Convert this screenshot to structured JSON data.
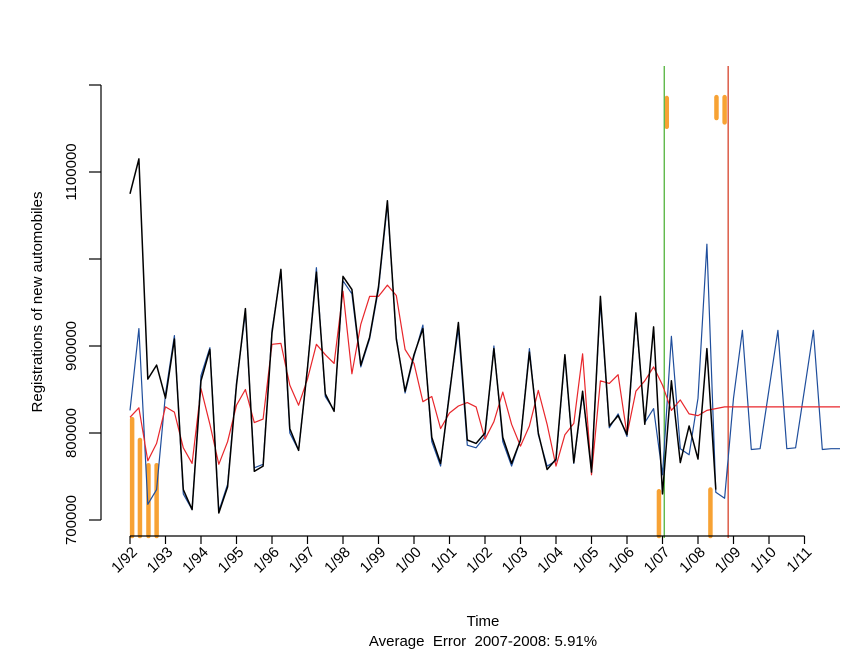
{
  "chart_data": {
    "type": "line",
    "xlabel": "Time",
    "ylabel": "Registrations of new automobiles",
    "footnote": "Average  Error  2007-2008: 5.91%",
    "xlim": [
      1992.0,
      2012.0
    ],
    "ylim": [
      700000,
      1200000
    ],
    "x_tick_labels": [
      "1/92",
      "1/93",
      "1/94",
      "1/95",
      "1/96",
      "1/97",
      "1/98",
      "1/99",
      "1/00",
      "1/01",
      "1/02",
      "1/03",
      "1/04",
      "1/05",
      "1/06",
      "1/07",
      "1/08",
      "1/09",
      "1/10",
      "1/11"
    ],
    "x_tick_values": [
      1992,
      1993,
      1994,
      1995,
      1996,
      1997,
      1998,
      1999,
      2000,
      2001,
      2002,
      2003,
      2004,
      2005,
      2006,
      2007,
      2008,
      2009,
      2010,
      2011
    ],
    "y_tick_labels": [
      "700000",
      "800000",
      "900000",
      "1100000"
    ],
    "y_tick_values": [
      700000,
      800000,
      900000,
      1100000
    ],
    "y_ticks_unlabeled": [
      1000000,
      1200000
    ],
    "series": [
      {
        "color": "#000000",
        "x": [
          1992.0,
          1992.25,
          1992.5,
          1992.75,
          1993.0,
          1993.25,
          1993.5,
          1993.75,
          1994.0,
          1994.25,
          1994.5,
          1994.75,
          1995.0,
          1995.25,
          1995.5,
          1995.75,
          1996.0,
          1996.25,
          1996.5,
          1996.75,
          1997.0,
          1997.25,
          1997.5,
          1997.75,
          1998.0,
          1998.25,
          1998.5,
          1998.75,
          1999.0,
          1999.25,
          1999.5,
          1999.75,
          2000.0,
          2000.25,
          2000.5,
          2000.75,
          2001.0,
          2001.25,
          2001.5,
          2001.75,
          2002.0,
          2002.25,
          2002.5,
          2002.75,
          2003.0,
          2003.25,
          2003.5,
          2003.75,
          2004.0,
          2004.25,
          2004.5,
          2004.75,
          2005.0,
          2005.25,
          2005.5,
          2005.75,
          2006.0,
          2006.25,
          2006.5,
          2006.75,
          2007.0,
          2007.25,
          2007.5,
          2007.75,
          2008.0,
          2008.25,
          2008.5
        ],
        "values": [
          1075000,
          1115000,
          862000,
          878000,
          840000,
          908000,
          735000,
          712000,
          860000,
          896000,
          708000,
          738000,
          855000,
          943000,
          756000,
          762000,
          915000,
          988000,
          805000,
          780000,
          875000,
          985000,
          845000,
          825000,
          980000,
          965000,
          878000,
          910000,
          968000,
          1067000,
          908000,
          848000,
          890000,
          920000,
          795000,
          765000,
          845000,
          927000,
          792000,
          788000,
          800000,
          897000,
          795000,
          765000,
          792000,
          893000,
          800000,
          758000,
          770000,
          890000,
          766000,
          848000,
          755000,
          957000,
          808000,
          820000,
          798000,
          938000,
          810000,
          922000,
          730000,
          860000,
          766000,
          808000,
          770000,
          897000,
          735000
        ]
      },
      {
        "color": "#1f4e9c",
        "x": [
          1992.0,
          1992.25,
          1992.5,
          1992.75,
          1993.0,
          1993.25,
          1993.5,
          1993.75,
          1994.0,
          1994.25,
          1994.5,
          1994.75,
          1995.0,
          1995.25,
          1995.5,
          1995.75,
          1996.0,
          1996.25,
          1996.5,
          1996.75,
          1997.0,
          1997.25,
          1997.5,
          1997.75,
          1998.0,
          1998.25,
          1998.5,
          1998.75,
          1999.0,
          1999.25,
          1999.5,
          1999.75,
          2000.0,
          2000.25,
          2000.5,
          2000.75,
          2001.0,
          2001.25,
          2001.5,
          2001.75,
          2002.0,
          2002.25,
          2002.5,
          2002.75,
          2003.0,
          2003.25,
          2003.5,
          2003.75,
          2004.0,
          2004.25,
          2004.5,
          2004.75,
          2005.0,
          2005.25,
          2005.5,
          2005.75,
          2006.0,
          2006.25,
          2006.5,
          2006.75,
          2007.0,
          2007.25,
          2007.5,
          2007.75,
          2008.0,
          2008.25,
          2008.5,
          2008.75,
          2009.0,
          2009.25,
          2009.5,
          2009.75,
          2010.0,
          2010.25,
          2010.5,
          2010.75,
          2011.0,
          2011.25,
          2011.5,
          2011.75,
          2012.0
        ],
        "values": [
          826000,
          920000,
          718000,
          735000,
          845000,
          912000,
          730000,
          712000,
          866000,
          898000,
          710000,
          741000,
          858000,
          938000,
          760000,
          764000,
          918000,
          986000,
          800000,
          780000,
          875000,
          990000,
          842000,
          826000,
          975000,
          960000,
          876000,
          908000,
          965000,
          1063000,
          910000,
          846000,
          888000,
          924000,
          790000,
          762000,
          848000,
          920000,
          786000,
          783000,
          796000,
          900000,
          790000,
          762000,
          792000,
          897000,
          798000,
          762000,
          768000,
          888000,
          765000,
          845000,
          760000,
          952000,
          806000,
          822000,
          796000,
          935000,
          812000,
          828000,
          752000,
          911000,
          782000,
          775000,
          840000,
          1017000,
          732000,
          725000,
          840000,
          918000,
          781000,
          782000,
          850000,
          918000,
          782000,
          783000,
          850000,
          918000,
          781000,
          782000,
          782000
        ]
      },
      {
        "color": "#e8262b",
        "x": [
          1992.0,
          1992.25,
          1992.5,
          1992.75,
          1993.0,
          1993.25,
          1993.5,
          1993.75,
          1994.0,
          1994.25,
          1994.5,
          1994.75,
          1995.0,
          1995.25,
          1995.5,
          1995.75,
          1996.0,
          1996.25,
          1996.5,
          1996.75,
          1997.0,
          1997.25,
          1997.5,
          1997.75,
          1998.0,
          1998.25,
          1998.5,
          1998.75,
          1999.0,
          1999.25,
          1999.5,
          1999.75,
          2000.0,
          2000.25,
          2000.5,
          2000.75,
          2001.0,
          2001.25,
          2001.5,
          2001.75,
          2002.0,
          2002.25,
          2002.5,
          2002.75,
          2003.0,
          2003.25,
          2003.5,
          2003.75,
          2004.0,
          2004.25,
          2004.5,
          2004.75,
          2005.0,
          2005.25,
          2005.5,
          2005.75,
          2006.0,
          2006.25,
          2006.5,
          2006.75,
          2007.0,
          2007.25,
          2007.5,
          2007.75,
          2008.0,
          2008.25,
          2008.5,
          2008.75,
          2009.0,
          2009.5,
          2010.0,
          2010.5,
          2011.0,
          2011.5,
          2012.0
        ],
        "values": [
          818000,
          829000,
          768000,
          788000,
          830000,
          824000,
          783000,
          765000,
          851000,
          810000,
          764000,
          790000,
          832000,
          850000,
          812000,
          816000,
          902000,
          903000,
          855000,
          832000,
          862000,
          902000,
          890000,
          880000,
          963000,
          868000,
          925000,
          957000,
          957000,
          970000,
          958000,
          896000,
          880000,
          836000,
          842000,
          805000,
          823000,
          831000,
          835000,
          830000,
          793000,
          813000,
          847000,
          810000,
          785000,
          808000,
          849000,
          810000,
          762000,
          798000,
          811000,
          891000,
          752000,
          860000,
          857000,
          867000,
          798000,
          848000,
          860000,
          876000,
          855000,
          826000,
          838000,
          822000,
          820000,
          826000,
          828000,
          830000,
          830000,
          830000,
          830000,
          830000,
          830000,
          830000,
          830000
        ]
      }
    ],
    "vertical_lines": [
      {
        "x": 2007.05,
        "color": "#5fb94a"
      },
      {
        "x": 2008.85,
        "color": "#d9503a"
      }
    ],
    "bottom_event_bars": [
      {
        "x": 1992.06,
        "top": 816000
      },
      {
        "x": 1992.28,
        "top": 792000
      },
      {
        "x": 1992.52,
        "top": 763000
      },
      {
        "x": 1992.75,
        "top": 763000
      },
      {
        "x": 2006.9,
        "top": 733000
      },
      {
        "x": 2008.35,
        "top": 735000
      }
    ],
    "top_event_bars": [
      {
        "x": 2007.12,
        "bottom": 1152000,
        "top": 1185000
      },
      {
        "x": 2008.52,
        "bottom": 1162000,
        "top": 1186000
      },
      {
        "x": 2008.75,
        "bottom": 1157000,
        "top": 1186000
      }
    ],
    "event_color": "#f7a234",
    "grid": false,
    "legend": "none"
  }
}
